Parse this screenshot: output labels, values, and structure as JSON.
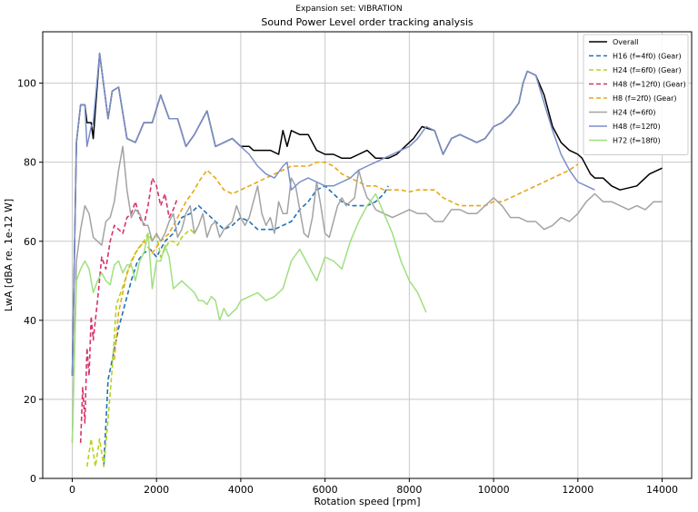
{
  "chart_data": {
    "type": "line",
    "suptitle": "Expansion set: VIBRATION",
    "title": "Sound Power Level order tracking analysis",
    "xlabel": "Rotation speed [rpm]",
    "ylabel": "LwA [dBA re. 1e-12 W]",
    "xlim": [
      -700,
      14700
    ],
    "ylim": [
      0,
      113
    ],
    "xticks": [
      0,
      2000,
      4000,
      6000,
      8000,
      10000,
      12000,
      14000
    ],
    "yticks": [
      0,
      20,
      40,
      60,
      80,
      100
    ],
    "grid": true,
    "legend_position": "top-right",
    "series": [
      {
        "name": "Overall",
        "color": "#000000",
        "dash": "solid",
        "x": [
          0,
          100,
          200,
          300,
          350,
          450,
          500,
          650,
          850,
          950,
          1100,
          1300,
          1500,
          1700,
          1900,
          2100,
          2300,
          2500,
          2700,
          2900,
          3200,
          3400,
          3600,
          3800,
          4000,
          4200,
          4300,
          4500,
          4700,
          4900,
          5000,
          5100,
          5200,
          5400,
          5600,
          5800,
          6000,
          6200,
          6400,
          6600,
          6800,
          7000,
          7200,
          7300,
          7500,
          7700,
          7900,
          8100,
          8300,
          8600,
          8800,
          9000,
          9200,
          9400,
          9600,
          9800,
          10000,
          10200,
          10400,
          10600,
          10700,
          10800,
          11000,
          11200,
          11400,
          11600,
          11800,
          12000,
          12100,
          12300,
          12400,
          12600,
          12800,
          13000,
          13400,
          13700,
          14000
        ],
        "y": [
          26,
          85,
          94.5,
          94.5,
          90,
          90,
          86,
          107.5,
          91,
          98,
          99,
          86,
          85,
          90,
          90,
          97,
          91,
          91,
          84,
          87,
          93,
          84,
          85,
          86,
          84,
          84,
          83,
          83,
          83,
          82,
          88,
          84,
          88,
          87,
          87,
          83,
          82,
          82,
          81,
          81,
          82,
          83,
          81,
          81,
          81,
          82,
          84,
          86,
          89,
          88,
          82,
          86,
          87,
          86,
          85,
          86,
          89,
          90,
          92,
          95,
          100,
          103,
          102,
          97,
          89,
          85,
          83,
          82,
          81,
          77,
          76,
          76,
          74,
          73,
          74,
          77,
          78.5
        ]
      },
      {
        "name": "H16 (f=4f0) (Gear)",
        "color": "#2171b5",
        "dash": "dashed",
        "x": [
          750,
          850,
          950,
          1100,
          1250,
          1400,
          1550,
          1700,
          1850,
          2000,
          2200,
          2400,
          2600,
          2800,
          3000,
          3200,
          3400,
          3600,
          3800,
          4000,
          4200,
          4400,
          4600,
          4800,
          5000,
          5200,
          5400,
          5600,
          5800,
          6000,
          6200,
          6400,
          6600,
          6800,
          7000,
          7200,
          7400,
          7500
        ],
        "y": [
          3,
          25,
          30,
          38,
          44,
          50,
          55,
          57,
          58,
          56,
          60,
          62,
          66,
          67,
          69,
          67,
          65,
          63,
          64,
          66,
          65,
          63,
          63,
          63,
          64,
          65,
          68,
          70,
          73,
          74,
          72,
          70,
          69,
          69,
          69,
          70,
          72,
          74
        ]
      },
      {
        "name": "H24 (f=6f0) (Gear)",
        "color": "#b5d320",
        "dash": "dashed",
        "x": [
          350,
          450,
          550,
          650,
          750,
          850,
          950,
          1050,
          1150,
          1250,
          1400,
          1550,
          1700,
          1800,
          1900,
          2000,
          2100,
          2200,
          2300,
          2400,
          2500,
          2600,
          2700,
          2800,
          2900,
          3000
        ],
        "y": [
          3,
          10,
          3,
          10,
          3,
          15,
          28,
          44,
          47,
          50,
          55,
          58,
          60,
          62,
          60,
          62,
          56,
          58,
          60,
          60,
          59,
          61,
          62,
          63,
          62,
          64
        ]
      },
      {
        "name": "H48 (f=12f0) (Gear)",
        "color": "#d6336c",
        "dash": "dashed",
        "x": [
          200,
          250,
          300,
          350,
          400,
          450,
          500,
          600,
          700,
          800,
          900,
          1000,
          1100,
          1200,
          1300,
          1400,
          1500,
          1600,
          1700,
          1800,
          1900,
          2000,
          2100,
          2200,
          2300,
          2400,
          2500
        ],
        "y": [
          9,
          23,
          14,
          33,
          26,
          41,
          35,
          45,
          56,
          53,
          60,
          64,
          63,
          62,
          66,
          67,
          70,
          66,
          64,
          69,
          76,
          74,
          69,
          72,
          66,
          68,
          71
        ]
      },
      {
        "name": "H8 (f=2f0) (Gear)",
        "color": "#e6a817",
        "dash": "dashed",
        "x": [
          1000,
          1100,
          1300,
          1500,
          1700,
          1900,
          2100,
          2300,
          2500,
          2700,
          2900,
          3000,
          3200,
          3400,
          3600,
          3800,
          4000,
          4200,
          4400,
          4600,
          4800,
          5000,
          5200,
          5400,
          5600,
          5800,
          6000,
          6200,
          6400,
          6600,
          6800,
          7000,
          7200,
          7400,
          7600,
          7800,
          8000,
          8200,
          8400,
          8600,
          8800,
          9000,
          9200,
          9400,
          9600,
          9800,
          10000,
          10200,
          10400,
          10600,
          10800,
          11000,
          11200,
          11400,
          11600,
          11800,
          12000
        ],
        "y": [
          30,
          42,
          52,
          57,
          60,
          57,
          60,
          62,
          66,
          70,
          73,
          75,
          78,
          76,
          73,
          72,
          73,
          74,
          75,
          76,
          77,
          78,
          79,
          79,
          79,
          80,
          80,
          79,
          77,
          76,
          75,
          74,
          74,
          73,
          73,
          73,
          72.5,
          73,
          73,
          73,
          71,
          70,
          69,
          69,
          69,
          69,
          70,
          70,
          71,
          72,
          73,
          74,
          75,
          76,
          77,
          78,
          79.5
        ]
      },
      {
        "name": "H24 (f=6f0)",
        "color": "#a3a3a3",
        "dash": "solid",
        "x": [
          0,
          100,
          200,
          300,
          400,
          500,
          600,
          700,
          800,
          900,
          1000,
          1100,
          1200,
          1300,
          1400,
          1500,
          1600,
          1700,
          1800,
          1900,
          2000,
          2100,
          2200,
          2300,
          2400,
          2500,
          2600,
          2700,
          2800,
          2900,
          3000,
          3100,
          3200,
          3300,
          3400,
          3500,
          3600,
          3700,
          3800,
          3900,
          4000,
          4100,
          4200,
          4300,
          4400,
          4500,
          4600,
          4700,
          4800,
          4900,
          5000,
          5100,
          5200,
          5300,
          5400,
          5500,
          5600,
          5700,
          5800,
          5900,
          6000,
          6100,
          6200,
          6300,
          6400,
          6500,
          6600,
          6700,
          6800,
          6900,
          7000,
          7100,
          7200,
          7400,
          7600,
          7800,
          8000,
          8200,
          8400,
          8600,
          8800,
          9000,
          9200,
          9400,
          9600,
          9800,
          10000,
          10200,
          10400,
          10600,
          10800,
          11000,
          11200,
          11400,
          11600,
          11800,
          12000,
          12200,
          12400,
          12600,
          12800,
          13000,
          13200,
          13400,
          13600,
          13800,
          14000
        ],
        "y": [
          9,
          55,
          63,
          69,
          67,
          61,
          60,
          59,
          65,
          66,
          70,
          78,
          84,
          73,
          66,
          68,
          67,
          64,
          64,
          60,
          62,
          60,
          62,
          65,
          67,
          61,
          63,
          67,
          69,
          62,
          64,
          67,
          61,
          64,
          65,
          61,
          63,
          64,
          65,
          69,
          66,
          64,
          66,
          70,
          74,
          67,
          64,
          66,
          62,
          70,
          67,
          67,
          76,
          74,
          68,
          62,
          61,
          66,
          75,
          69,
          62,
          61,
          65,
          69,
          71,
          69,
          70,
          71,
          78,
          74,
          71,
          70,
          68,
          67,
          66,
          67,
          68,
          67,
          67,
          65,
          65,
          68,
          68,
          67,
          67,
          69,
          71,
          69,
          66,
          66,
          65,
          65,
          63,
          64,
          66,
          65,
          67,
          70,
          72,
          70,
          70,
          69,
          68,
          69,
          68,
          70,
          70
        ]
      },
      {
        "name": "H48 (f=12f0)",
        "color": "#7b8ec8",
        "dash": "solid",
        "x": [
          0,
          100,
          200,
          300,
          350,
          450,
          500,
          650,
          850,
          950,
          1100,
          1300,
          1500,
          1700,
          1900,
          2100,
          2300,
          2500,
          2700,
          2900,
          3200,
          3400,
          3600,
          3800,
          4000,
          4200,
          4400,
          4600,
          4800,
          5000,
          5100,
          5200,
          5400,
          5600,
          5800,
          6000,
          6200,
          6400,
          6600,
          6800,
          7000,
          7200,
          7400,
          7600,
          7800,
          8000,
          8200,
          8400,
          8600,
          8800,
          9000,
          9200,
          9400,
          9600,
          9800,
          10000,
          10200,
          10400,
          10600,
          10700,
          10800,
          11000,
          11200,
          11400,
          11600,
          11800,
          12000,
          12200,
          12400
        ],
        "y": [
          26,
          85,
          94.5,
          94.5,
          84,
          89,
          90,
          107.5,
          91,
          98,
          99,
          86,
          85,
          90,
          90,
          97,
          91,
          91,
          84,
          87,
          93,
          84,
          85,
          86,
          84,
          82,
          79,
          77,
          76,
          79,
          80,
          73,
          75,
          76,
          75,
          74,
          74,
          75,
          76,
          78,
          79,
          80,
          81,
          82,
          83,
          84,
          86,
          89,
          88,
          82,
          86,
          87,
          86,
          85,
          86,
          89,
          90,
          92,
          95,
          100,
          103,
          102,
          95,
          88,
          82,
          78,
          75,
          74,
          73
        ]
      },
      {
        "name": "H72 (f=18f0)",
        "color": "#9fe07f",
        "dash": "solid",
        "x": [
          0,
          100,
          200,
          300,
          400,
          500,
          600,
          700,
          800,
          900,
          1000,
          1100,
          1200,
          1300,
          1400,
          1500,
          1600,
          1700,
          1800,
          1900,
          2000,
          2100,
          2200,
          2300,
          2400,
          2500,
          2600,
          2700,
          2800,
          2900,
          3000,
          3100,
          3200,
          3300,
          3400,
          3500,
          3600,
          3700,
          3800,
          3900,
          4000,
          4200,
          4400,
          4600,
          4800,
          5000,
          5200,
          5400,
          5600,
          5800,
          6000,
          6200,
          6400,
          6600,
          6800,
          7000,
          7200,
          7400,
          7600,
          7800,
          8000,
          8200,
          8400
        ],
        "y": [
          9,
          50,
          53,
          55,
          53,
          47,
          50,
          52,
          50,
          49,
          54,
          55,
          52,
          54,
          54,
          50,
          55,
          57,
          62,
          48,
          55,
          55,
          59,
          56,
          48,
          49,
          50,
          49,
          48,
          47,
          45,
          45,
          44,
          46,
          45,
          40,
          43,
          41,
          42,
          43,
          45,
          46,
          47,
          45,
          46,
          48,
          55,
          58,
          54,
          50,
          56,
          55,
          53,
          60,
          65,
          69,
          72,
          67,
          62,
          55,
          50,
          47,
          42
        ]
      }
    ]
  }
}
